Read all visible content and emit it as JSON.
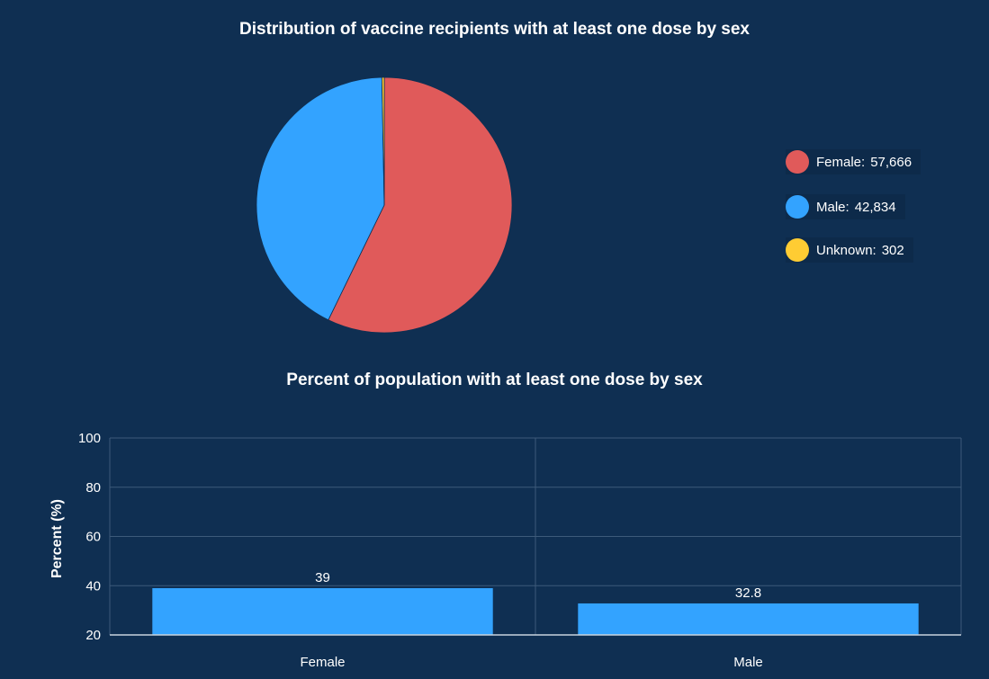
{
  "chart_data": [
    {
      "type": "pie",
      "title": "Distribution of vaccine recipients with at least one dose by sex",
      "slices": [
        {
          "label": "Female",
          "value": 57666,
          "display": "57,666",
          "color": "#e05a5a"
        },
        {
          "label": "Male",
          "value": 42834,
          "display": "42,834",
          "color": "#33a3ff"
        },
        {
          "label": "Unknown",
          "value": 302,
          "display": "302",
          "color": "#ffcc33"
        }
      ],
      "legend_position": "right"
    },
    {
      "type": "bar",
      "title": "Percent of population with at least one dose by sex",
      "categories": [
        "Female",
        "Male"
      ],
      "values": [
        39,
        32.8
      ],
      "value_labels": [
        "39",
        "32.8"
      ],
      "ylabel": "Percent (%)",
      "xlabel": "",
      "ylim": [
        20,
        100
      ],
      "yticks": [
        20,
        40,
        60,
        80,
        100
      ],
      "grid": true,
      "bar_color": "#33a3ff"
    }
  ]
}
